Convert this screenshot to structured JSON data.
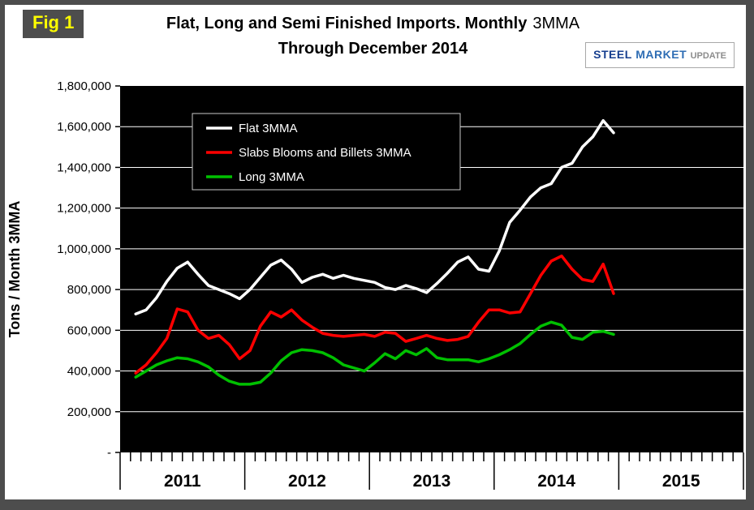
{
  "frame": {
    "fig_label": "Fig 1"
  },
  "header": {
    "title_bold": "Flat, Long and Semi Finished Imports. Monthly",
    "title_regular": "3MMA",
    "subtitle": "Through December 2014"
  },
  "logo": {
    "part1": "STEEL",
    "part2": "MARKET",
    "part3": "UPDATE"
  },
  "chart_data": {
    "type": "line",
    "title": "Flat, Long and Semi Finished Imports. Monthly 3MMA Through December 2014",
    "xlabel": "",
    "ylabel": "Tons / Month 3MMA",
    "ylim": [
      0,
      1800000
    ],
    "ytick_step": 200000,
    "ytick_labels": [
      "-",
      "200,000",
      "400,000",
      "600,000",
      "800,000",
      "1,000,000",
      "1,200,000",
      "1,400,000",
      "1,600,000",
      "1,800,000"
    ],
    "grid": true,
    "plot_bg": "#000000",
    "gridline_color": "#ffffff",
    "legend_position": "top-left-inside",
    "x_axis_years": [
      "2011",
      "2012",
      "2013",
      "2014",
      "2015"
    ],
    "x_axis_month_range": [
      "2011-01",
      "2016-01"
    ],
    "months": [
      "2011-02",
      "2011-03",
      "2011-04",
      "2011-05",
      "2011-06",
      "2011-07",
      "2011-08",
      "2011-09",
      "2011-10",
      "2011-11",
      "2011-12",
      "2012-01",
      "2012-02",
      "2012-03",
      "2012-04",
      "2012-05",
      "2012-06",
      "2012-07",
      "2012-08",
      "2012-09",
      "2012-10",
      "2012-11",
      "2012-12",
      "2013-01",
      "2013-02",
      "2013-03",
      "2013-04",
      "2013-05",
      "2013-06",
      "2013-07",
      "2013-08",
      "2013-09",
      "2013-10",
      "2013-11",
      "2013-12",
      "2014-01",
      "2014-02",
      "2014-03",
      "2014-04",
      "2014-05",
      "2014-06",
      "2014-07",
      "2014-08",
      "2014-09",
      "2014-10",
      "2014-11",
      "2014-12"
    ],
    "series": [
      {
        "name": "Flat 3MMA",
        "color": "#FFFFFF",
        "values": [
          680000,
          700000,
          760000,
          840000,
          905000,
          935000,
          875000,
          820000,
          800000,
          780000,
          755000,
          800000,
          860000,
          920000,
          945000,
          900000,
          835000,
          860000,
          875000,
          855000,
          870000,
          855000,
          845000,
          835000,
          810000,
          800000,
          820000,
          805000,
          785000,
          830000,
          880000,
          935000,
          960000,
          900000,
          890000,
          990000,
          1130000,
          1190000,
          1255000,
          1300000,
          1320000,
          1400000,
          1420000,
          1500000,
          1550000,
          1630000,
          1570000
        ]
      },
      {
        "name": "Slabs Blooms and Billets 3MMA",
        "color": "#FF0000",
        "values": [
          390000,
          430000,
          490000,
          560000,
          705000,
          690000,
          600000,
          560000,
          575000,
          530000,
          460000,
          500000,
          620000,
          690000,
          665000,
          700000,
          650000,
          615000,
          585000,
          575000,
          570000,
          575000,
          580000,
          570000,
          590000,
          585000,
          545000,
          560000,
          575000,
          560000,
          550000,
          555000,
          570000,
          640000,
          700000,
          700000,
          685000,
          690000,
          780000,
          870000,
          940000,
          965000,
          900000,
          850000,
          840000,
          925000,
          780000
        ]
      },
      {
        "name": "Long 3MMA",
        "color": "#00C000",
        "values": [
          370000,
          400000,
          430000,
          450000,
          465000,
          460000,
          445000,
          420000,
          380000,
          350000,
          335000,
          335000,
          345000,
          390000,
          450000,
          490000,
          505000,
          500000,
          490000,
          465000,
          430000,
          415000,
          400000,
          440000,
          485000,
          460000,
          500000,
          480000,
          510000,
          465000,
          455000,
          455000,
          455000,
          445000,
          460000,
          480000,
          505000,
          535000,
          580000,
          620000,
          640000,
          625000,
          565000,
          555000,
          590000,
          595000,
          580000
        ]
      }
    ]
  }
}
